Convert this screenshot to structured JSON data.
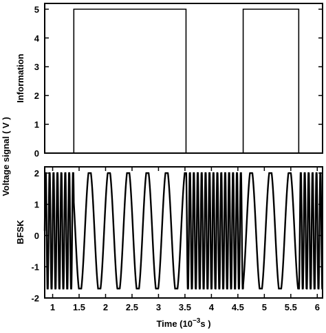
{
  "chart_data": [
    {
      "type": "line",
      "panel": "top",
      "ylabel": "Information",
      "ylim": [
        0,
        5.2
      ],
      "xlim": [
        0.85,
        6.1
      ],
      "yticks": [
        "0",
        "1",
        "2",
        "3",
        "4",
        "5"
      ],
      "series": [
        {
          "x": [
            0.85,
            1.4,
            1.4,
            3.52,
            3.52,
            4.6,
            4.6,
            5.65,
            5.65,
            6.1
          ],
          "values": [
            0,
            0,
            5,
            5,
            0,
            0,
            5,
            5,
            0,
            0
          ]
        }
      ]
    },
    {
      "type": "line",
      "panel": "bottom",
      "ylabel": "BFSK",
      "ylim": [
        -2,
        2.2
      ],
      "xlim": [
        0.85,
        6.1
      ],
      "yticks": [
        "-2",
        "-1",
        "0",
        "1",
        "2"
      ],
      "xticks": [
        "1",
        "1.5",
        "2",
        "2.5",
        "3",
        "3.5",
        "4",
        "4.5",
        "5",
        "5.5",
        "6"
      ],
      "xlabel": "Time (10",
      "xlabel_exp": "−3",
      "xlabel_unit": "s )",
      "amplitude": [
        -1.7,
        2.0
      ],
      "segments": [
        {
          "x_start": 0.85,
          "x_end": 1.4,
          "level": "low",
          "cycles_per_ms": 13.5
        },
        {
          "x_start": 1.4,
          "x_end": 3.52,
          "level": "high",
          "cycles_per_ms": 2.75
        },
        {
          "x_start": 3.52,
          "x_end": 4.6,
          "level": "low",
          "cycles_per_ms": 13.5
        },
        {
          "x_start": 4.6,
          "x_end": 5.65,
          "level": "high",
          "cycles_per_ms": 2.75
        },
        {
          "x_start": 5.65,
          "x_end": 6.1,
          "level": "low",
          "cycles_per_ms": 13.5
        }
      ]
    }
  ],
  "shared": {
    "ylabel": "Voltage signal ( V )"
  }
}
